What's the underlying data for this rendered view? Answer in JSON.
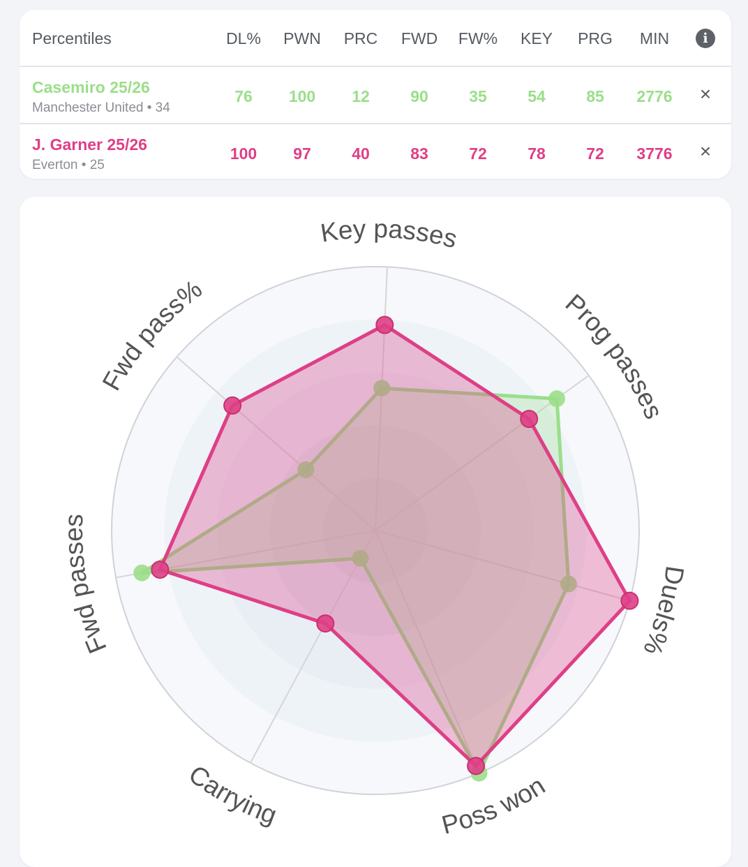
{
  "table": {
    "header": {
      "title": "Percentiles",
      "columns": [
        "DL%",
        "PWN",
        "PRC",
        "FWD",
        "FW%",
        "KEY",
        "PRG",
        "MIN"
      ],
      "info_icon": "info-icon"
    },
    "players": [
      {
        "name": "Casemiro 25/26",
        "meta": "Manchester United • 34",
        "values": [
          "76",
          "100",
          "12",
          "90",
          "35",
          "54",
          "85",
          "2776"
        ],
        "color": "#9bde8a",
        "remove": "×"
      },
      {
        "name": "J. Garner 25/26",
        "meta": "Everton • 25",
        "values": [
          "100",
          "97",
          "40",
          "83",
          "72",
          "78",
          "72",
          "3776"
        ],
        "color": "#de3f86",
        "remove": "×"
      }
    ]
  },
  "chart_data": {
    "type": "radar",
    "axes": [
      "Key passes",
      "Prog passes",
      "Duels%",
      "Poss won",
      "Carrying",
      "Fwd passes",
      "Fwd pass%"
    ],
    "range": [
      0,
      100
    ],
    "series": [
      {
        "name": "Casemiro 25/26",
        "color": "#9bde8a",
        "values": [
          54,
          85,
          76,
          100,
          12,
          90,
          35
        ]
      },
      {
        "name": "J. Garner 25/26",
        "color": "#de3f86",
        "values": [
          78,
          72,
          100,
          97,
          40,
          83,
          72
        ]
      }
    ]
  }
}
